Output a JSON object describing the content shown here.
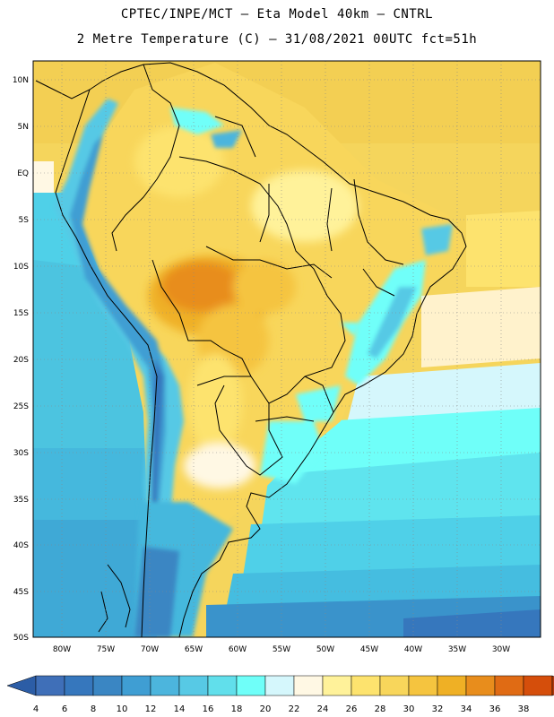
{
  "header": {
    "line1": "CPTEC/INPE/MCT –  Eta Model 40km – CNTRL",
    "line2": "2 Metre Temperature (C) – 31/08/2021 00UTC fct=51h"
  },
  "map": {
    "region": "South America",
    "lat_labels": [
      "10N",
      "5N",
      "EQ",
      "5S",
      "10S",
      "15S",
      "20S",
      "25S",
      "30S",
      "35S",
      "40S",
      "45S",
      "50S"
    ],
    "lon_labels": [
      "80W",
      "75W",
      "70W",
      "65W",
      "60W",
      "55W",
      "50W",
      "45W",
      "40W",
      "35W",
      "30W"
    ],
    "gridlines": true
  },
  "colorbar": {
    "labels": [
      "4",
      "6",
      "8",
      "10",
      "12",
      "14",
      "16",
      "18",
      "20",
      "22",
      "24",
      "26",
      "28",
      "30",
      "32",
      "34",
      "36",
      "38"
    ],
    "colors": [
      "#3f6fb8",
      "#3677bd",
      "#3a86c3",
      "#3f9ed3",
      "#4cb5dd",
      "#57c9e5",
      "#61dfeb",
      "#6ffff9",
      "#d5f7fc",
      "#fff8e4",
      "#fff29a",
      "#fde36e",
      "#f8d65b",
      "#f5c43f",
      "#efb025",
      "#e88d1c",
      "#e06b14",
      "#d54e0b",
      "#b83a0d"
    ],
    "low_arrow_color": "#2c5da6",
    "high_arrow_color": "#b43b0e"
  }
}
